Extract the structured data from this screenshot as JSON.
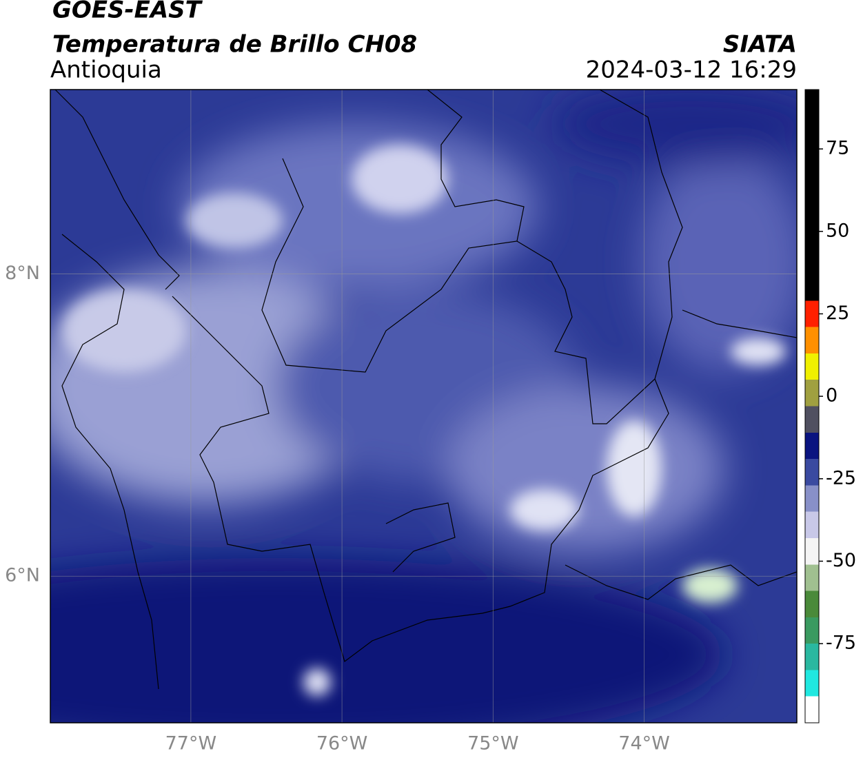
{
  "header": {
    "satellite": "GOES-EAST",
    "title": "Temperatura de Brillo CH08",
    "region": "Antioquia",
    "source": "SIATA",
    "datetime": "2024-03-12 16:29"
  },
  "map": {
    "xlim": [
      -77.93,
      -72.99
    ],
    "ylim": [
      5.03,
      9.22
    ],
    "xticks": [
      {
        "value": -77,
        "label": "77°W"
      },
      {
        "value": -76,
        "label": "76°W"
      },
      {
        "value": -75,
        "label": "75°W"
      },
      {
        "value": -74,
        "label": "74°W"
      }
    ],
    "yticks": [
      {
        "value": 6,
        "label": "6°N"
      },
      {
        "value": 8,
        "label": "8°N"
      }
    ],
    "grid": true
  },
  "colorbar": {
    "lim": [
      -99,
      93
    ],
    "ticks": [
      -75,
      -50,
      -25,
      0,
      25,
      50,
      75
    ],
    "colors": [
      "#ffffff",
      "#20e8e0",
      "#2ab8a0",
      "#3a9a60",
      "#4a8a3a",
      "#a0c090",
      "#f4f4f4",
      "#c8c8e8",
      "#8890c8",
      "#3a4aa0",
      "#0a1480",
      "#505060",
      "#a0a040",
      "#f0f000",
      "#ff9000",
      "#ff2000",
      "#000000",
      "#000000",
      "#000000",
      "#000000",
      "#000000",
      "#000000",
      "#000000",
      "#000000"
    ]
  }
}
